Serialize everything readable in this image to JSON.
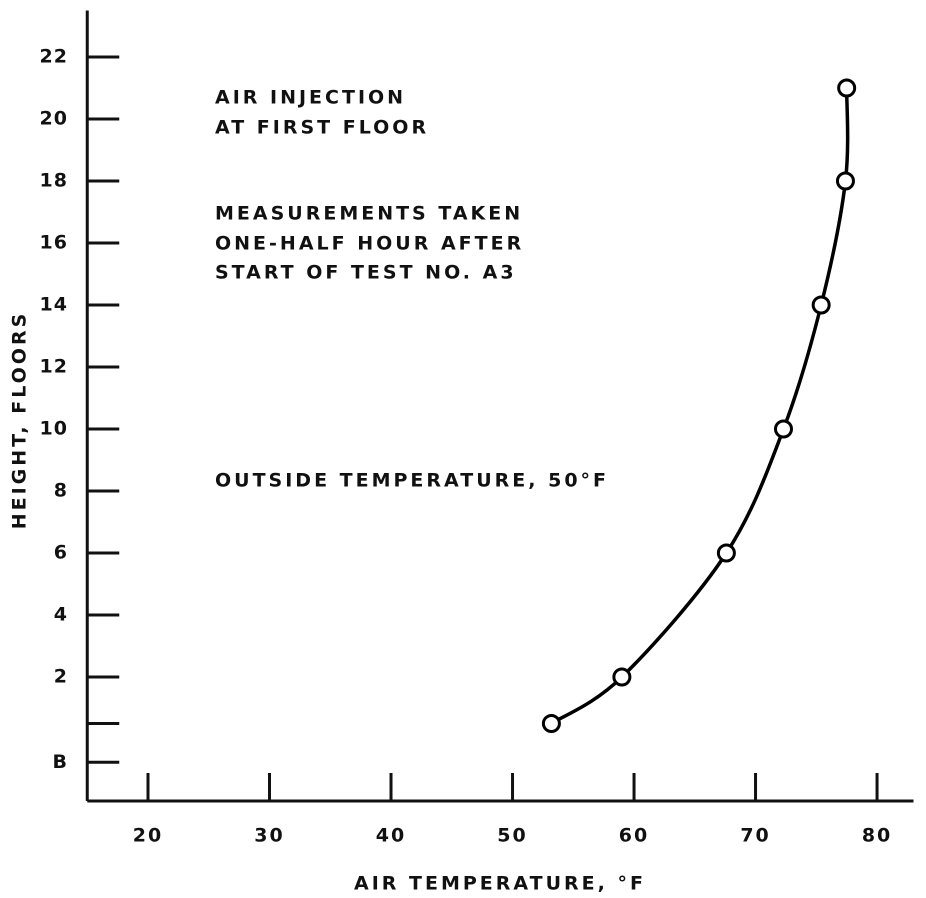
{
  "chart_data": {
    "type": "line",
    "xlabel": "AIR TEMPERATURE, °F",
    "ylabel": "HEIGHT, FLOORS",
    "annotations": [
      "AIR INJECTION",
      "AT FIRST FLOOR",
      "MEASUREMENTS TAKEN",
      "ONE-HALF HOUR AFTER",
      "START OF TEST NO. A3",
      "OUTSIDE TEMPERATURE, 50°F"
    ],
    "series": [
      {
        "x": [
          53.2,
          59,
          67.6,
          72.3,
          75.4,
          77.4,
          77.5
        ],
        "values": [
          0.5,
          2,
          6,
          10,
          14,
          18,
          21
        ],
        "color": "#000000"
      }
    ],
    "xlim": [
      15,
      83
    ],
    "xticks": [
      20,
      30,
      40,
      50,
      60,
      70,
      80
    ],
    "ylim": [
      -2,
      23.5
    ],
    "yticks": [
      {
        "value": -0.75,
        "label": "B"
      },
      2,
      4,
      6,
      8,
      10,
      12,
      14,
      16,
      18,
      20,
      22
    ],
    "minor_yticks": [
      0.5
    ],
    "grid": false
  }
}
